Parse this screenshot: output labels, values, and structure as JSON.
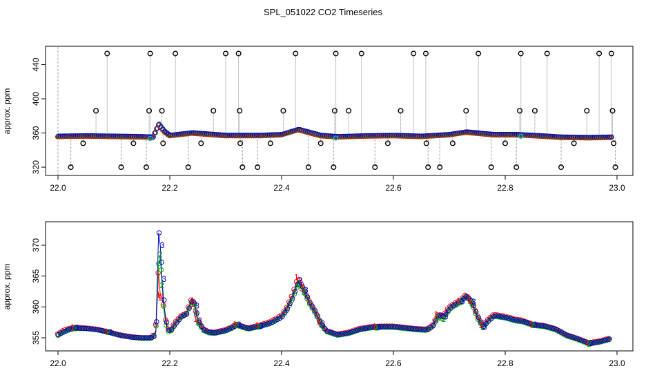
{
  "title": "SPL_051022  CO2 Timeseries",
  "colors": {
    "frame": "#000000",
    "series1": "#ff0000",
    "series2": "#00aa00",
    "series3": "#0000cc",
    "drop": "#888888",
    "cyan": "#00c0e0"
  },
  "chart_data": [
    {
      "type": "scatter",
      "title": "SPL_051022  CO2 Timeseries",
      "xlabel": "",
      "ylabel": "approx. ppm",
      "xlim": [
        22.0,
        23.0
      ],
      "ylim": [
        316,
        455
      ],
      "xticks": [
        "22.0",
        "22.2",
        "22.4",
        "22.6",
        "22.8",
        "23.0"
      ],
      "yticks": [
        "320",
        "360",
        "400",
        "440"
      ],
      "baseline_x": [
        22.0,
        22.05,
        22.1,
        22.15,
        22.17,
        22.18,
        22.19,
        22.2,
        22.24,
        22.3,
        22.33,
        22.36,
        22.4,
        22.43,
        22.47,
        22.5,
        22.55,
        22.6,
        22.65,
        22.7,
        22.73,
        22.78,
        22.82,
        22.85,
        22.9,
        22.95,
        22.99
      ],
      "baseline_y": [
        356,
        356.5,
        356,
        355.5,
        355,
        370,
        362,
        357,
        360,
        357,
        357,
        357,
        358,
        364,
        357,
        355.5,
        356.5,
        357,
        356,
        358,
        361,
        358,
        358,
        357,
        355,
        354.5,
        355
      ],
      "outliers": [
        {
          "x": 22.023,
          "y": 320
        },
        {
          "x": 22.045,
          "y": 348
        },
        {
          "x": 22.068,
          "y": 386
        },
        {
          "x": 22.088,
          "y": 453
        },
        {
          "x": 22.113,
          "y": 320
        },
        {
          "x": 22.135,
          "y": 348
        },
        {
          "x": 22.158,
          "y": 320
        },
        {
          "x": 22.163,
          "y": 386
        },
        {
          "x": 22.165,
          "y": 453
        },
        {
          "x": 22.186,
          "y": 386
        },
        {
          "x": 22.188,
          "y": 348
        },
        {
          "x": 22.21,
          "y": 453
        },
        {
          "x": 22.233,
          "y": 320
        },
        {
          "x": 22.256,
          "y": 348
        },
        {
          "x": 22.278,
          "y": 386
        },
        {
          "x": 22.3,
          "y": 453
        },
        {
          "x": 22.323,
          "y": 453
        },
        {
          "x": 22.325,
          "y": 386
        },
        {
          "x": 22.326,
          "y": 348
        },
        {
          "x": 22.33,
          "y": 320
        },
        {
          "x": 22.357,
          "y": 320
        },
        {
          "x": 22.38,
          "y": 348
        },
        {
          "x": 22.403,
          "y": 386
        },
        {
          "x": 22.425,
          "y": 453
        },
        {
          "x": 22.448,
          "y": 320
        },
        {
          "x": 22.47,
          "y": 348
        },
        {
          "x": 22.493,
          "y": 320
        },
        {
          "x": 22.495,
          "y": 386
        },
        {
          "x": 22.497,
          "y": 453
        },
        {
          "x": 22.52,
          "y": 386
        },
        {
          "x": 22.543,
          "y": 453
        },
        {
          "x": 22.567,
          "y": 320
        },
        {
          "x": 22.59,
          "y": 348
        },
        {
          "x": 22.613,
          "y": 386
        },
        {
          "x": 22.636,
          "y": 453
        },
        {
          "x": 22.658,
          "y": 453
        },
        {
          "x": 22.659,
          "y": 348
        },
        {
          "x": 22.662,
          "y": 320
        },
        {
          "x": 22.683,
          "y": 320
        },
        {
          "x": 22.706,
          "y": 348
        },
        {
          "x": 22.73,
          "y": 386
        },
        {
          "x": 22.752,
          "y": 453
        },
        {
          "x": 22.775,
          "y": 320
        },
        {
          "x": 22.8,
          "y": 348
        },
        {
          "x": 22.82,
          "y": 320
        },
        {
          "x": 22.826,
          "y": 386
        },
        {
          "x": 22.828,
          "y": 453
        },
        {
          "x": 22.853,
          "y": 386
        },
        {
          "x": 22.875,
          "y": 453
        },
        {
          "x": 22.9,
          "y": 320
        },
        {
          "x": 22.923,
          "y": 348
        },
        {
          "x": 22.946,
          "y": 386
        },
        {
          "x": 22.968,
          "y": 453
        },
        {
          "x": 22.99,
          "y": 453
        },
        {
          "x": 22.992,
          "y": 386
        },
        {
          "x": 22.994,
          "y": 348
        },
        {
          "x": 22.997,
          "y": 320
        }
      ]
    },
    {
      "type": "line",
      "title": "",
      "xlabel": "",
      "ylabel": "approx. ppm",
      "xlim": [
        22.0,
        23.0
      ],
      "ylim": [
        353,
        372.5
      ],
      "xticks": [
        "22.0",
        "22.2",
        "22.4",
        "22.6",
        "22.8",
        "23.0"
      ],
      "yticks": [
        "355",
        "360",
        "365",
        "370"
      ],
      "x": [
        22.0,
        22.01,
        22.02,
        22.03,
        22.05,
        22.07,
        22.09,
        22.11,
        22.13,
        22.15,
        22.165,
        22.17,
        22.175,
        22.18,
        22.183,
        22.186,
        22.19,
        22.195,
        22.2,
        22.21,
        22.22,
        22.23,
        22.24,
        22.245,
        22.25,
        22.26,
        22.27,
        22.28,
        22.29,
        22.3,
        22.31,
        22.32,
        22.34,
        22.36,
        22.38,
        22.4,
        22.41,
        22.42,
        22.43,
        22.44,
        22.45,
        22.46,
        22.47,
        22.48,
        22.5,
        22.52,
        22.54,
        22.56,
        22.58,
        22.6,
        22.62,
        22.64,
        22.66,
        22.67,
        22.68,
        22.69,
        22.7,
        22.71,
        22.72,
        22.73,
        22.74,
        22.75,
        22.76,
        22.77,
        22.78,
        22.8,
        22.82,
        22.83,
        22.85,
        22.87,
        22.89,
        22.91,
        22.93,
        22.95,
        22.97,
        22.99
      ],
      "series": [
        {
          "name": "1",
          "values": [
            355.6,
            356.2,
            356.5,
            356.7,
            356.6,
            356.4,
            356.0,
            355.5,
            355.2,
            355.0,
            355.0,
            355.2,
            356.2,
            365.5,
            362.0,
            361.5,
            360.0,
            357.0,
            356.0,
            357.5,
            358.5,
            359.0,
            361.5,
            360.5,
            358.0,
            356.5,
            356.0,
            355.9,
            356.1,
            356.3,
            356.7,
            357.2,
            356.6,
            357.0,
            357.6,
            358.6,
            360.0,
            362.0,
            364.8,
            363.0,
            361.0,
            359.5,
            357.5,
            356.2,
            355.6,
            355.9,
            356.5,
            356.8,
            356.9,
            356.9,
            356.7,
            356.5,
            356.4,
            357.0,
            358.8,
            358.6,
            360.0,
            360.6,
            361.0,
            362.0,
            361.0,
            358.8,
            357.0,
            358.0,
            358.8,
            358.5,
            358.0,
            357.9,
            357.2,
            357.0,
            356.5,
            355.5,
            354.9,
            354.2,
            354.5,
            355.0
          ]
        },
        {
          "name": "2",
          "values": [
            355.4,
            355.9,
            356.3,
            356.5,
            356.5,
            356.3,
            355.9,
            355.4,
            355.1,
            354.9,
            354.9,
            355.0,
            355.8,
            367.0,
            368.5,
            363.5,
            359.0,
            356.2,
            355.8,
            357.2,
            358.3,
            358.8,
            361.0,
            360.0,
            357.5,
            356.2,
            355.8,
            355.7,
            355.9,
            356.1,
            356.5,
            357.0,
            356.4,
            356.8,
            357.3,
            358.3,
            359.5,
            361.4,
            363.8,
            362.4,
            360.5,
            359.0,
            357.2,
            356.0,
            355.4,
            355.7,
            356.3,
            356.6,
            356.7,
            356.7,
            356.5,
            356.3,
            356.2,
            356.8,
            358.3,
            358.0,
            359.6,
            360.2,
            360.7,
            361.7,
            360.6,
            358.2,
            356.7,
            357.7,
            358.5,
            358.2,
            357.7,
            357.6,
            357.0,
            356.8,
            356.3,
            355.3,
            354.7,
            354.0,
            354.3,
            354.8
          ]
        },
        {
          "name": "3",
          "values": [
            355.5,
            356.0,
            356.4,
            356.6,
            356.5,
            356.3,
            355.9,
            355.4,
            355.1,
            355.0,
            355.0,
            355.1,
            356.0,
            372.0,
            370.0,
            364.5,
            360.0,
            356.5,
            356.0,
            357.3,
            358.4,
            358.9,
            361.2,
            360.2,
            357.8,
            356.3,
            355.9,
            355.8,
            356.0,
            356.2,
            356.6,
            357.1,
            356.5,
            356.9,
            357.4,
            358.4,
            359.8,
            361.7,
            364.3,
            362.7,
            360.7,
            359.2,
            357.3,
            356.1,
            355.5,
            355.8,
            356.4,
            356.7,
            356.8,
            356.8,
            356.6,
            356.4,
            356.3,
            356.9,
            358.6,
            358.4,
            359.8,
            360.4,
            360.9,
            361.8,
            360.8,
            358.5,
            356.8,
            357.8,
            358.6,
            358.3,
            357.8,
            357.7,
            357.1,
            356.9,
            356.4,
            355.4,
            354.8,
            354.1,
            354.4,
            354.9
          ]
        }
      ]
    }
  ]
}
